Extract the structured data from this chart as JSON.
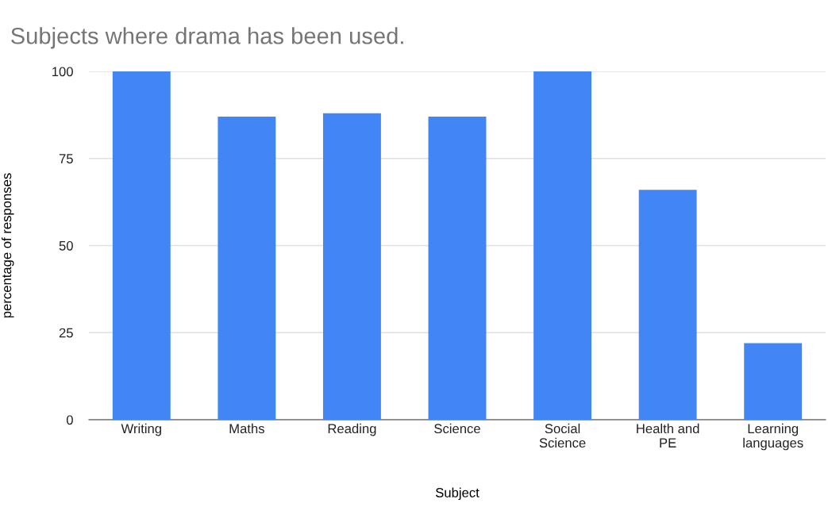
{
  "chart_data": {
    "type": "bar",
    "title": "Subjects where drama has been used.",
    "xlabel": "Subject",
    "ylabel": "percentage of responses",
    "categories": [
      "Writing",
      "Maths",
      "Reading",
      "Science",
      "Social\nScience",
      "Health and\nPE",
      "Learning\nlanguages"
    ],
    "values": [
      100,
      87,
      88,
      87,
      100,
      66,
      22
    ],
    "color": "#4285f4",
    "ylim": [
      0,
      100
    ],
    "yticks": [
      0,
      25,
      50,
      75,
      100
    ],
    "grid": "y"
  }
}
